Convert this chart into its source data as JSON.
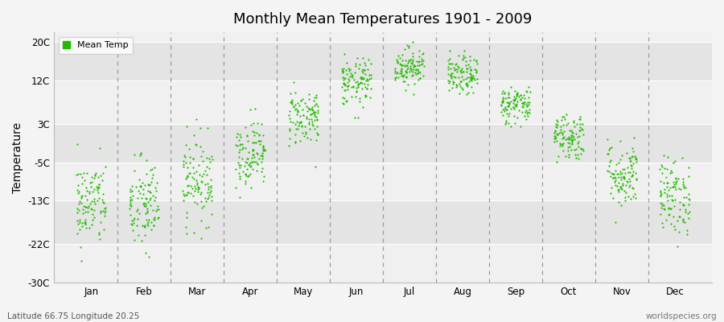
{
  "title": "Monthly Mean Temperatures 1901 - 2009",
  "ylabel": "Temperature",
  "ytick_labels": [
    "20C",
    "12C",
    "3C",
    "-5C",
    "-13C",
    "-22C",
    "-30C"
  ],
  "ytick_values": [
    20,
    12,
    3,
    -5,
    -13,
    -22,
    -30
  ],
  "ylim": [
    -30,
    22
  ],
  "months": [
    "Jan",
    "Feb",
    "Mar",
    "Apr",
    "May",
    "Jun",
    "Jul",
    "Aug",
    "Sep",
    "Oct",
    "Nov",
    "Dec"
  ],
  "month_positions": [
    1,
    2,
    3,
    4,
    5,
    6,
    7,
    8,
    9,
    10,
    11,
    12
  ],
  "xlim": [
    0.3,
    12.7
  ],
  "dot_color": "#22BB00",
  "dot_size": 2.5,
  "background_color": "#f4f4f4",
  "plot_bg_color_light": "#f0f0f0",
  "plot_bg_color_dark": "#e4e4e4",
  "grid_color": "#999999",
  "footer_left": "Latitude 66.75 Longitude 20.25",
  "footer_right": "worldspecies.org",
  "legend_label": "Mean Temp",
  "n_years": 109,
  "mean_temps": [
    -13.5,
    -14.0,
    -8.5,
    -3.0,
    4.5,
    11.5,
    15.0,
    13.0,
    7.0,
    0.5,
    -7.5,
    -12.0
  ],
  "std_temps": [
    4.5,
    5.0,
    4.5,
    3.5,
    3.0,
    2.5,
    2.0,
    2.0,
    2.0,
    2.5,
    3.5,
    4.0
  ],
  "x_jitter": 0.28
}
